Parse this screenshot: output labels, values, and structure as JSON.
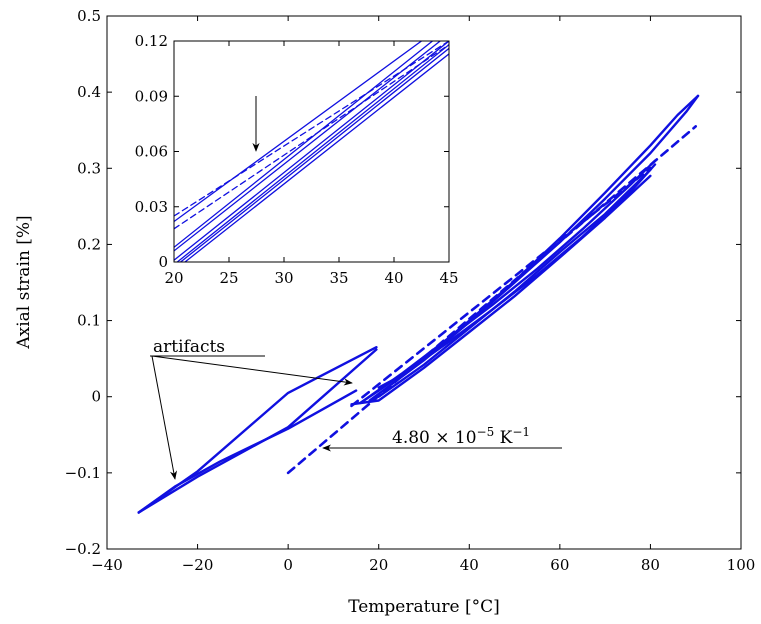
{
  "chart_data": [
    {
      "type": "line",
      "xlabel": "Temperature [°C]",
      "ylabel": "Axial strain [%]",
      "xlim": [
        -40,
        100
      ],
      "ylim": [
        -0.2,
        0.5
      ],
      "xticks": [
        "−40",
        "−20",
        "0",
        "20",
        "40",
        "60",
        "80",
        "100"
      ],
      "yticks": [
        "−0.2",
        "−0.1",
        "0",
        "0.1",
        "0.2",
        "0.3",
        "0.4",
        "0.5"
      ],
      "grid": false,
      "series": [
        {
          "style": "solid",
          "color": "#1010e0",
          "segments": [
            {
              "x": [
                -33,
                -20,
                0,
                19.5
              ],
              "y": [
                -0.152,
                -0.098,
                0.005,
                0.065
              ]
            },
            {
              "x": [
                19.5,
                0,
                -20,
                -33
              ],
              "y": [
                0.062,
                -0.04,
                -0.105,
                -0.152
              ]
            },
            {
              "x": [
                -33,
                -25,
                -15,
                0,
                15
              ],
              "y": [
                -0.152,
                -0.118,
                -0.085,
                -0.042,
                0.008
              ]
            },
            {
              "x": [
                18,
                30,
                40,
                50,
                60,
                70,
                80,
                88,
                90.5
              ],
              "y": [
                -0.005,
                0.048,
                0.098,
                0.15,
                0.203,
                0.26,
                0.32,
                0.375,
                0.395
              ]
            },
            {
              "x": [
                90.5,
                86,
                80,
                70,
                60,
                50,
                40,
                30,
                20,
                16
              ],
              "y": [
                0.395,
                0.37,
                0.33,
                0.268,
                0.208,
                0.152,
                0.1,
                0.05,
                0.008,
                -0.008
              ]
            },
            {
              "x": [
                16,
                25,
                35,
                45,
                55,
                65,
                75,
                81
              ],
              "y": [
                -0.008,
                0.03,
                0.075,
                0.12,
                0.168,
                0.22,
                0.275,
                0.31
              ]
            },
            {
              "x": [
                81,
                75,
                65,
                55,
                45,
                35,
                25,
                20
              ],
              "y": [
                0.305,
                0.265,
                0.21,
                0.16,
                0.114,
                0.07,
                0.028,
                0.012
              ]
            },
            {
              "x": [
                20,
                30,
                40,
                50,
                60,
                70,
                80
              ],
              "y": [
                0.0,
                0.042,
                0.09,
                0.138,
                0.19,
                0.24,
                0.298
              ]
            },
            {
              "x": [
                80,
                70,
                60,
                50,
                40,
                30,
                20,
                14
              ],
              "y": [
                0.29,
                0.235,
                0.183,
                0.132,
                0.085,
                0.038,
                -0.005,
                -0.01
              ]
            }
          ]
        },
        {
          "style": "dashed",
          "color": "#1010e0",
          "segments": [
            {
              "x": [
                0,
                90
              ],
              "y": [
                -0.1,
                0.355
              ]
            },
            {
              "x": [
                14,
                80
              ],
              "y": [
                -0.012,
                0.3
              ]
            }
          ]
        }
      ],
      "annotations": [
        {
          "text": "artifacts"
        },
        {
          "text": "4.80 × 10",
          "sup": "−5",
          "tail": " K",
          "tailsup": "−1"
        }
      ]
    },
    {
      "type": "line",
      "inset": true,
      "xlim": [
        20,
        45
      ],
      "ylim": [
        0,
        0.12
      ],
      "xticks": [
        "20",
        "25",
        "30",
        "35",
        "40",
        "45"
      ],
      "yticks": [
        "0",
        "0.03",
        "0.06",
        "0.09",
        "0.12"
      ],
      "grid": false,
      "series": [
        {
          "style": "solid",
          "color": "#1010e0",
          "segments": [
            {
              "x": [
                20,
                42.5
              ],
              "y": [
                0.022,
                0.12
              ]
            },
            {
              "x": [
                20,
                43.5
              ],
              "y": [
                0.008,
                0.12
              ]
            },
            {
              "x": [
                20,
                44.2
              ],
              "y": [
                0.006,
                0.12
              ]
            },
            {
              "x": [
                20,
                45
              ],
              "y": [
                0.001,
                0.12
              ]
            },
            {
              "x": [
                20.3,
                45
              ],
              "y": [
                0.0,
                0.118
              ]
            },
            {
              "x": [
                20.6,
                45
              ],
              "y": [
                0.0,
                0.116
              ]
            },
            {
              "x": [
                21.0,
                45
              ],
              "y": [
                0.0,
                0.113
              ]
            }
          ]
        },
        {
          "style": "dashed",
          "color": "#1010e0",
          "segments": [
            {
              "x": [
                20,
                45
              ],
              "y": [
                0.025,
                0.12
              ]
            },
            {
              "x": [
                20,
                45
              ],
              "y": [
                0.018,
                0.118
              ]
            }
          ]
        }
      ]
    }
  ]
}
